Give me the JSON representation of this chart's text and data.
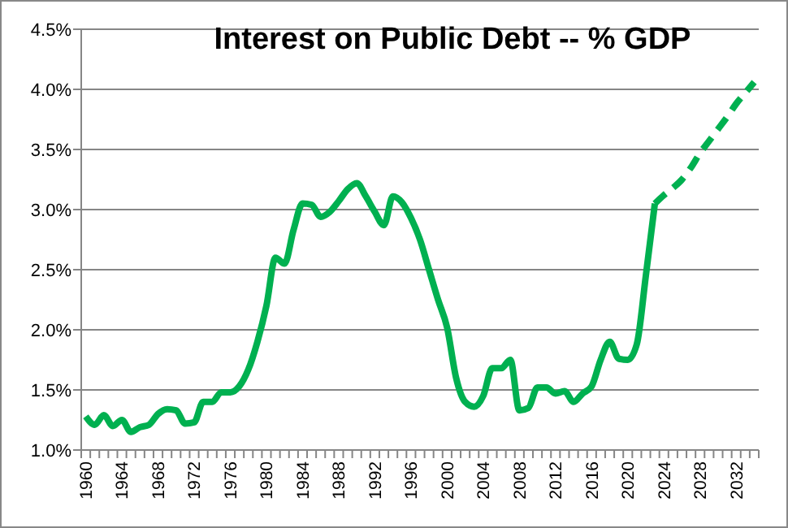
{
  "chart_data": {
    "type": "line",
    "title": "Interest on Public Debt -- % GDP",
    "categories": [
      "1960",
      null,
      null,
      null,
      "1964",
      null,
      null,
      null,
      "1968",
      null,
      null,
      null,
      "1972",
      null,
      null,
      null,
      "1976",
      null,
      null,
      null,
      "1980",
      null,
      null,
      null,
      "1984",
      null,
      null,
      null,
      "1988",
      null,
      null,
      null,
      "1992",
      null,
      null,
      null,
      "1996",
      null,
      null,
      null,
      "2000",
      null,
      null,
      null,
      "2004",
      null,
      null,
      null,
      "2008",
      null,
      null,
      null,
      "2012",
      null,
      null,
      null,
      "2016",
      null,
      null,
      null,
      "2020",
      null,
      null,
      null,
      "2024",
      null,
      null,
      null,
      "2028",
      null,
      null,
      null,
      "2032",
      null,
      null
    ],
    "series": [
      {
        "color": "#00b050",
        "line_style": "solid",
        "values": [
          1.28,
          1.21,
          1.29,
          1.2,
          1.25,
          1.15,
          1.19,
          1.21,
          1.3,
          1.34,
          1.33,
          1.22,
          1.23,
          1.4,
          1.4,
          1.48,
          1.48,
          1.53,
          1.67,
          1.9,
          2.2,
          2.6,
          2.55,
          2.83,
          3.05,
          3.04,
          2.94,
          2.98,
          3.07,
          3.17,
          3.22,
          3.11,
          2.98,
          2.87,
          3.11,
          3.06,
          2.93,
          2.75,
          2.5,
          2.25,
          2.02,
          1.6,
          1.4,
          1.36,
          1.45,
          1.68,
          1.68,
          1.75,
          1.33,
          1.35,
          1.52,
          1.52,
          1.47,
          1.49,
          1.4,
          1.47,
          1.53,
          1.75,
          1.9,
          1.76,
          1.75,
          1.88,
          2.45,
          3.05,
          null,
          null,
          null,
          null,
          null,
          null,
          null,
          null,
          null,
          null,
          null
        ]
      },
      {
        "color": "#00b050",
        "line_style": "dashed",
        "values": [
          null,
          null,
          null,
          null,
          null,
          null,
          null,
          null,
          null,
          null,
          null,
          null,
          null,
          null,
          null,
          null,
          null,
          null,
          null,
          null,
          null,
          null,
          null,
          null,
          null,
          null,
          null,
          null,
          null,
          null,
          null,
          null,
          null,
          null,
          null,
          null,
          null,
          null,
          null,
          null,
          null,
          null,
          null,
          null,
          null,
          null,
          null,
          null,
          null,
          null,
          null,
          null,
          null,
          null,
          null,
          null,
          null,
          null,
          null,
          null,
          null,
          null,
          null,
          3.05,
          3.12,
          3.18,
          3.25,
          3.35,
          3.47,
          3.57,
          3.67,
          3.77,
          3.88,
          3.97,
          4.06
        ]
      }
    ],
    "ylim": [
      1.0,
      4.5
    ],
    "yticks": [
      {
        "value": 1.0,
        "label": "1.0%"
      },
      {
        "value": 1.5,
        "label": "1.5%"
      },
      {
        "value": 2.0,
        "label": "2.0%"
      },
      {
        "value": 2.5,
        "label": "2.5%"
      },
      {
        "value": 3.0,
        "label": "3.0%"
      },
      {
        "value": 3.5,
        "label": "3.5%"
      },
      {
        "value": 4.0,
        "label": "4.0%"
      },
      {
        "value": 4.5,
        "label": "4.5%"
      }
    ],
    "grid": "y"
  }
}
